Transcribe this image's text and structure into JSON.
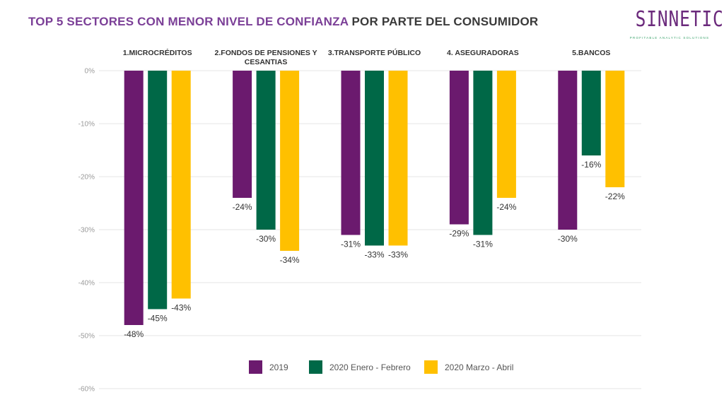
{
  "header": {
    "title_accent": "TOP 5 SECTORES CON MENOR NIVEL DE CONFIANZA",
    "title_rest": "POR PARTE DEL CONSUMIDOR",
    "logo_text": "SINNETIC",
    "logo_tagline": "PROFITABLE ANALYTIC SOLUTIONS"
  },
  "colors": {
    "s2019": "#6B1A6E",
    "s2020a": "#006847",
    "s2020b": "#FFC000",
    "accent": "#7B3F97",
    "grid": "#e6e6e6"
  },
  "chart_data": {
    "type": "bar",
    "categories": [
      [
        "1.MICROCRÉDITOS"
      ],
      [
        "2.FONDOS DE PENSIONES Y",
        "CESANTIAS"
      ],
      [
        "3.TRANSPORTE PÚBLICO"
      ],
      [
        "4. ASEGURADORAS"
      ],
      [
        "5.BANCOS"
      ]
    ],
    "series": [
      {
        "name": "2019",
        "values": [
          -48,
          -24,
          -31,
          -29,
          -30
        ],
        "labels": [
          "-48%",
          "-24%",
          "-31%",
          "-29%",
          "-30%"
        ]
      },
      {
        "name": "2020 Enero - Febrero",
        "values": [
          -45,
          -30,
          -33,
          -31,
          -16
        ],
        "labels": [
          "-45%",
          "-30%",
          "-33%",
          "-31%",
          "-16%"
        ]
      },
      {
        "name": "2020 Marzo - Abril",
        "values": [
          -43,
          -34,
          -33,
          -24,
          -22
        ],
        "labels": [
          "-43%",
          "-34%",
          "-33%",
          "-24%",
          "-22%"
        ]
      }
    ],
    "yticks": [
      0,
      -10,
      -20,
      -30,
      -40,
      -50,
      -60
    ],
    "ytick_labels": [
      "0%",
      "-10%",
      "-20%",
      "-30%",
      "-40%",
      "-50%",
      "-60%"
    ],
    "ylim": [
      -60,
      0
    ],
    "grid": true,
    "legend_position": "bottom"
  }
}
